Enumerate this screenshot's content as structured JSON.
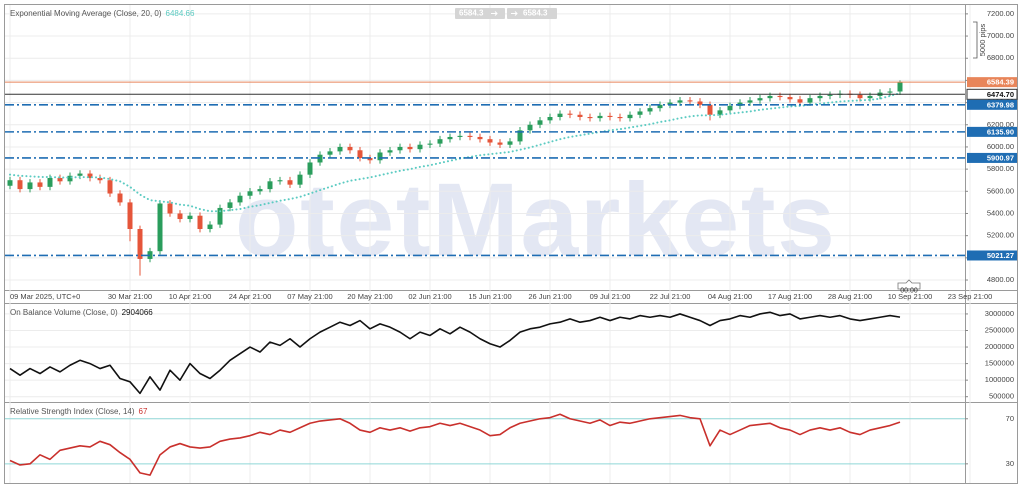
{
  "chart_data": [
    {
      "type": "candlestick",
      "title": "Exponential Moving Average (Close, 20, 0)",
      "categories": [
        "09 Mar 2025, UTC+0",
        null,
        null,
        null,
        null,
        null,
        null,
        null,
        null,
        null,
        null,
        null,
        "30 Mar 21:00",
        null,
        null,
        null,
        null,
        null,
        "10 Apr 21:00",
        null,
        null,
        null,
        null,
        null,
        "24 Apr 21:00",
        null,
        null,
        null,
        null,
        null,
        "07 May 21:00",
        null,
        null,
        null,
        null,
        null,
        "20 May 21:00",
        null,
        null,
        null,
        null,
        null,
        "02 Jun 21:00",
        null,
        null,
        null,
        null,
        null,
        "15 Jun 21:00",
        null,
        null,
        null,
        null,
        null,
        "26 Jun 21:00",
        null,
        null,
        null,
        null,
        null,
        "09 Jul 21:00",
        null,
        null,
        null,
        null,
        null,
        "22 Jul 21:00",
        null,
        null,
        null,
        null,
        null,
        "04 Aug 21:00",
        null,
        null,
        null,
        null,
        null,
        "17 Aug 21:00",
        null,
        null,
        null,
        null,
        null,
        "28 Aug 21:00",
        null,
        null,
        null,
        null,
        null,
        "10 Sep 21:00",
        null,
        null,
        null,
        null,
        null,
        "23 Sep 21:00",
        null
      ],
      "open": [
        5650,
        5700,
        5620,
        5680,
        5640,
        5720,
        5690,
        5740,
        5760,
        5720,
        5700,
        5580,
        5500,
        5260,
        4990,
        5060,
        5490,
        5400,
        5350,
        5380,
        5260,
        5300,
        5450,
        5500,
        5560,
        5600,
        5620,
        5690,
        5700,
        5660,
        5750,
        5860,
        5930,
        5960,
        6000,
        5970,
        5900,
        5880,
        5950,
        5970,
        6000,
        5980,
        6020,
        6030,
        6070,
        6090,
        6100,
        6090,
        6070,
        6040,
        6020,
        6050,
        6150,
        6200,
        6240,
        6270,
        6300,
        6290,
        6270,
        6260,
        6280,
        6270,
        6260,
        6290,
        6320,
        6350,
        6380,
        6400,
        6420,
        6410,
        6380,
        6290,
        6330,
        6370,
        6400,
        6420,
        6440,
        6460,
        6450,
        6430,
        6400,
        6440,
        6460,
        6470,
        6480,
        6470,
        6440,
        6460,
        6490,
        6500,
        null,
        null,
        null,
        null,
        null,
        null,
        null,
        null
      ],
      "high": [
        5730,
        5730,
        5710,
        5710,
        5750,
        5750,
        5770,
        5790,
        5790,
        5750,
        5730,
        5610,
        5530,
        5290,
        5090,
        5520,
        5520,
        5430,
        5410,
        5410,
        5330,
        5480,
        5530,
        5590,
        5630,
        5650,
        5720,
        5730,
        5730,
        5780,
        5890,
        5960,
        5990,
        6030,
        6030,
        6000,
        5930,
        5980,
        6000,
        6030,
        6030,
        6050,
        6060,
        6100,
        6120,
        6130,
        6130,
        6120,
        6100,
        6070,
        6080,
        6180,
        6230,
        6270,
        6300,
        6330,
        6330,
        6320,
        6300,
        6310,
        6310,
        6300,
        6320,
        6350,
        6380,
        6410,
        6430,
        6450,
        6450,
        6440,
        6410,
        6360,
        6400,
        6430,
        6450,
        6470,
        6490,
        6490,
        6480,
        6460,
        6470,
        6490,
        6500,
        6510,
        6510,
        6500,
        6490,
        6520,
        6530,
        6600,
        null,
        null,
        null,
        null,
        null,
        null,
        null,
        null
      ],
      "low": [
        5620,
        5590,
        5590,
        5610,
        5610,
        5660,
        5660,
        5710,
        5690,
        5670,
        5550,
        5470,
        5150,
        4840,
        4960,
        5030,
        5370,
        5320,
        5320,
        5230,
        5230,
        5270,
        5420,
        5470,
        5530,
        5570,
        5590,
        5660,
        5630,
        5630,
        5720,
        5830,
        5900,
        5930,
        5940,
        5870,
        5850,
        5850,
        5920,
        5940,
        5950,
        5950,
        5990,
        6000,
        6040,
        6060,
        6060,
        6040,
        6010,
        5990,
        5990,
        6020,
        6120,
        6170,
        6210,
        6240,
        6260,
        6240,
        6230,
        6230,
        6240,
        6230,
        6230,
        6260,
        6290,
        6320,
        6350,
        6370,
        6380,
        6350,
        6240,
        6260,
        6300,
        6340,
        6370,
        6390,
        6410,
        6420,
        6400,
        6370,
        6370,
        6410,
        6430,
        6440,
        6440,
        6410,
        6410,
        6430,
        6460,
        6470,
        null,
        null,
        null,
        null,
        null,
        null,
        null,
        null
      ],
      "close": [
        5700,
        5620,
        5680,
        5640,
        5720,
        5690,
        5740,
        5760,
        5720,
        5700,
        5580,
        5500,
        5260,
        4990,
        5060,
        5490,
        5400,
        5350,
        5380,
        5260,
        5300,
        5450,
        5500,
        5560,
        5600,
        5620,
        5690,
        5700,
        5660,
        5750,
        5860,
        5930,
        5960,
        6000,
        5970,
        5900,
        5880,
        5950,
        5970,
        6000,
        5980,
        6020,
        6030,
        6070,
        6090,
        6100,
        6090,
        6070,
        6040,
        6020,
        6050,
        6150,
        6200,
        6240,
        6270,
        6300,
        6290,
        6270,
        6260,
        6280,
        6270,
        6260,
        6290,
        6320,
        6350,
        6380,
        6400,
        6420,
        6410,
        6380,
        6290,
        6330,
        6370,
        6400,
        6420,
        6440,
        6460,
        6450,
        6430,
        6400,
        6440,
        6460,
        6470,
        6480,
        6470,
        6440,
        6460,
        6490,
        6500,
        6584,
        null,
        null,
        null,
        null,
        null,
        null,
        null,
        null
      ],
      "up_color": "#2a9d5c",
      "down_color": "#e5553a",
      "series": [
        {
          "color": "#5ccbc2",
          "style": "dotted",
          "values": [
            5750,
            5740,
            5735,
            5730,
            5728,
            5725,
            5725,
            5728,
            5727,
            5725,
            5710,
            5690,
            5640,
            5570,
            5520,
            5510,
            5500,
            5480,
            5470,
            5440,
            5420,
            5420,
            5430,
            5440,
            5460,
            5475,
            5495,
            5515,
            5530,
            5550,
            5580,
            5610,
            5640,
            5670,
            5695,
            5710,
            5725,
            5745,
            5765,
            5785,
            5800,
            5820,
            5835,
            5855,
            5875,
            5895,
            5910,
            5925,
            5935,
            5945,
            5955,
            5975,
            5995,
            6020,
            6045,
            6070,
            6090,
            6105,
            6120,
            6135,
            6150,
            6160,
            6175,
            6190,
            6205,
            6225,
            6240,
            6260,
            6275,
            6285,
            6285,
            6290,
            6300,
            6310,
            6320,
            6335,
            6345,
            6355,
            6365,
            6370,
            6380,
            6390,
            6400,
            6410,
            6415,
            6420,
            6425,
            6435,
            6460,
            6484.66,
            null,
            null,
            null,
            null,
            null,
            null,
            null,
            null
          ]
        }
      ],
      "ylim": [
        4710,
        7280
      ],
      "yticks": [
        {
          "value": 4800,
          "label": "4800.00"
        },
        {
          "value": 5000,
          "label": "5000.00"
        },
        {
          "value": 5200,
          "label": "5200.00"
        },
        {
          "value": 5400,
          "label": "5400.00"
        },
        {
          "value": 5600,
          "label": "5600.00"
        },
        {
          "value": 5800,
          "label": "5800.00"
        },
        {
          "value": 6000,
          "label": "6000.00"
        },
        {
          "value": 6200,
          "label": "6200.00"
        },
        {
          "value": 6400,
          "label": "6400.00"
        },
        {
          "value": 6600,
          "label": "6600.00"
        },
        {
          "value": 6800,
          "label": "6800.00"
        },
        {
          "value": 7000,
          "label": "7000.00"
        },
        {
          "value": 7200,
          "label": "7200.00"
        }
      ],
      "grid": true,
      "grid_color": "#ececec",
      "levels": [
        {
          "value": 6584.39,
          "color": "#e8855a",
          "style": "solid",
          "badge": "fill"
        },
        {
          "value": 6474.7,
          "label": "6474.70",
          "color": "#333333",
          "style": "solid",
          "badge": "outline"
        },
        {
          "value": 6379.98,
          "color": "#1f6db3",
          "style": "dashdot",
          "badge": "fill"
        },
        {
          "value": 6135.9,
          "label": "6135.90",
          "color": "#1f6db3",
          "style": "dashdot",
          "badge": "fill"
        },
        {
          "value": 5900.97,
          "color": "#1f6db3",
          "style": "dashdot",
          "badge": "fill"
        },
        {
          "value": 5021.27,
          "color": "#1f6db3",
          "style": "dashdot",
          "badge": "fill"
        }
      ],
      "price_buttons": [
        "6584.3",
        "6584.3"
      ],
      "scale_note": "5000 pips",
      "time_marker": "00:00",
      "watermark": "otetMarkets"
    },
    {
      "type": "line",
      "title": "On Balance Volume (Close, 0)",
      "series": [
        {
          "color": "#111111",
          "values": [
            1350000,
            1150000,
            1350000,
            1200000,
            1400000,
            1250000,
            1450000,
            1600000,
            1500000,
            1350000,
            1450000,
            1050000,
            950000,
            600000,
            1100000,
            700000,
            1300000,
            1000000,
            1500000,
            1200000,
            1050000,
            1300000,
            1600000,
            1800000,
            2000000,
            1850000,
            2150000,
            2050000,
            2250000,
            2000000,
            2250000,
            2450000,
            2600000,
            2750000,
            2650000,
            2800000,
            2550000,
            2700000,
            2600000,
            2450000,
            2250000,
            2450000,
            2350000,
            2550000,
            2400000,
            2600000,
            2450000,
            2250000,
            2100000,
            2000000,
            2200000,
            2450000,
            2550000,
            2600000,
            2700000,
            2750000,
            2850000,
            2750000,
            2800000,
            2900000,
            2800000,
            2900000,
            2850000,
            2950000,
            2900000,
            2950000,
            2900000,
            3000000,
            2900000,
            2800000,
            2650000,
            2800000,
            2850000,
            2950000,
            2900000,
            3000000,
            3050000,
            2950000,
            3000000,
            2850000,
            2900000,
            2950000,
            2900000,
            2950000,
            2850000,
            2800000,
            2850000,
            2900000,
            2950000,
            2904066,
            null,
            null,
            null,
            null,
            null,
            null,
            null,
            null
          ]
        }
      ],
      "ylim": [
        340000,
        3300000
      ],
      "yticks": [
        500000,
        1000000,
        1500000,
        2000000,
        2500000,
        3000000
      ],
      "grid": true,
      "grid_color": "#ececec"
    },
    {
      "type": "line",
      "title": "Relative Strength Index (Close, 14)",
      "series": [
        {
          "color": "#c9302c",
          "values": [
            33,
            29,
            30,
            38,
            34,
            42,
            44,
            46,
            45,
            50,
            47,
            40,
            34,
            22,
            20,
            38,
            45,
            48,
            45,
            44,
            45,
            50,
            52,
            53,
            55,
            58,
            56,
            60,
            58,
            62,
            66,
            68,
            69,
            70,
            66,
            60,
            58,
            62,
            60,
            62,
            59,
            62,
            63,
            66,
            64,
            66,
            63,
            60,
            55,
            56,
            62,
            66,
            68,
            70,
            71,
            74,
            70,
            68,
            66,
            69,
            64,
            67,
            66,
            68,
            70,
            71,
            72,
            73,
            71,
            70,
            46,
            60,
            56,
            60,
            64,
            65,
            66,
            62,
            60,
            56,
            60,
            62,
            60,
            62,
            58,
            56,
            60,
            62,
            64,
            67,
            null,
            null,
            null,
            null,
            null,
            null,
            null,
            null
          ]
        }
      ],
      "ylim": [
        13,
        84
      ],
      "yticks": [
        30,
        70
      ],
      "grid": true,
      "grid_color": "#8fd6d6"
    }
  ]
}
